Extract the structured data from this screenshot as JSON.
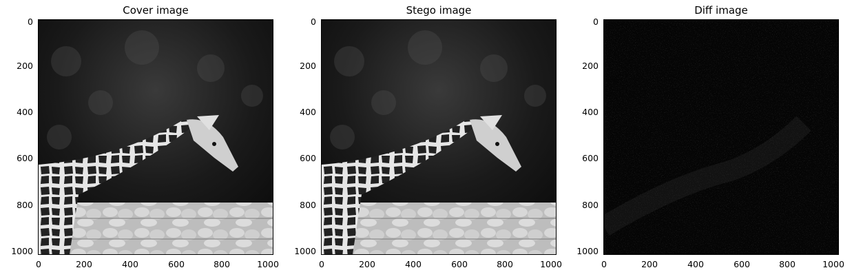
{
  "panels": [
    {
      "title": "Cover image"
    },
    {
      "title": "Stego image"
    },
    {
      "title": "Diff image"
    }
  ],
  "axes": {
    "y_ticks": [
      "0",
      "200",
      "400",
      "600",
      "800",
      "1000"
    ],
    "x_ticks": [
      "0",
      "200",
      "400",
      "600",
      "800",
      "1000"
    ],
    "range": [
      0,
      1024
    ]
  },
  "colors": {
    "background": "#ffffff",
    "image_dark": "#111111",
    "diff_bg": "#050505"
  }
}
